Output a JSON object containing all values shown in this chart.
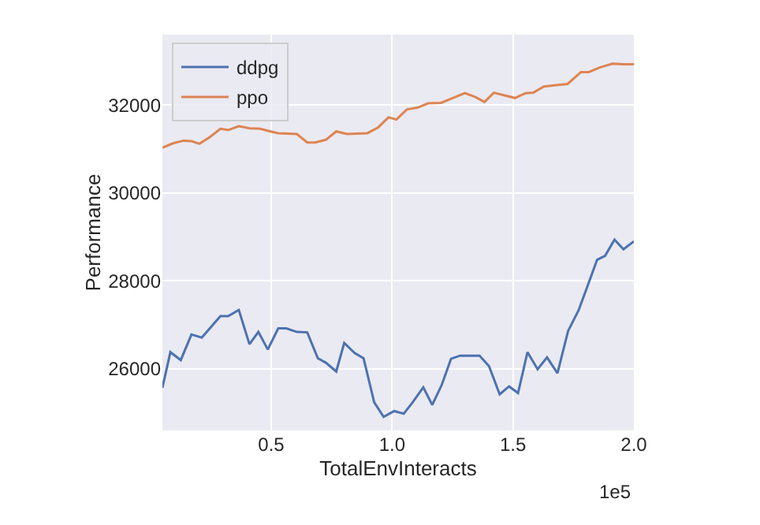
{
  "chart_data": {
    "type": "line",
    "xlabel": "TotalEnvInteracts",
    "ylabel": "Performance",
    "annotations": [
      "1e5"
    ],
    "xlim": [
      0.05,
      2.0
    ],
    "xticks": [
      0.5,
      {
        "value": 1,
        "label": "1.0"
      },
      1.5,
      {
        "value": 2,
        "label": "2.0"
      }
    ],
    "ylim": [
      24600,
      33600
    ],
    "yticks": [
      26000,
      28000,
      30000,
      32000
    ],
    "grid": true,
    "legend": "top left",
    "marker": "none",
    "line_style": "solid",
    "series": [
      {
        "name": "ddpg",
        "color": "#4c72b0",
        "x": [
          0.05,
          0.083,
          0.126,
          0.17,
          0.213,
          0.29,
          0.322,
          0.366,
          0.41,
          0.447,
          0.486,
          0.529,
          0.562,
          0.606,
          0.649,
          0.693,
          0.726,
          0.769,
          0.802,
          0.845,
          0.882,
          0.926,
          0.965,
          1.009,
          1.048,
          1.085,
          1.129,
          1.166,
          1.205,
          1.244,
          1.281,
          1.362,
          1.401,
          1.445,
          1.484,
          1.521,
          1.56,
          1.602,
          1.641,
          1.684,
          1.728,
          1.772,
          1.804,
          1.848,
          1.881,
          1.92,
          1.957,
          2.0
        ],
        "values": [
          25570,
          26380,
          26200,
          26780,
          26710,
          27200,
          27200,
          27340,
          26560,
          26840,
          26440,
          26920,
          26920,
          26840,
          26830,
          26240,
          26140,
          25940,
          26590,
          26360,
          26240,
          25240,
          24910,
          25040,
          24980,
          25240,
          25580,
          25180,
          25630,
          26230,
          26300,
          26300,
          26060,
          25420,
          25600,
          25450,
          26380,
          25990,
          26260,
          25900,
          26860,
          27340,
          27820,
          28480,
          28570,
          28940,
          28720,
          28900
        ]
      },
      {
        "name": "ppo",
        "color": "#dd8452",
        "x": [
          0.05,
          0.094,
          0.137,
          0.17,
          0.203,
          0.246,
          0.29,
          0.322,
          0.366,
          0.41,
          0.453,
          0.497,
          0.529,
          0.606,
          0.649,
          0.682,
          0.726,
          0.769,
          0.813,
          0.898,
          0.942,
          0.985,
          1.018,
          1.061,
          1.105,
          1.149,
          1.203,
          1.247,
          1.301,
          1.345,
          1.382,
          1.421,
          1.465,
          1.508,
          1.552,
          1.584,
          1.628,
          1.672,
          1.726,
          1.781,
          1.813,
          1.857,
          1.911,
          1.955,
          1.988,
          2.0
        ],
        "values": [
          31030,
          31130,
          31190,
          31180,
          31120,
          31270,
          31460,
          31430,
          31520,
          31470,
          31460,
          31400,
          31360,
          31340,
          31150,
          31150,
          31210,
          31400,
          31340,
          31360,
          31490,
          31720,
          31670,
          31900,
          31940,
          32040,
          32050,
          32150,
          32270,
          32180,
          32070,
          32280,
          32220,
          32160,
          32270,
          32280,
          32420,
          32450,
          32480,
          32750,
          32750,
          32850,
          32940,
          32930,
          32930,
          32930
        ]
      }
    ]
  }
}
